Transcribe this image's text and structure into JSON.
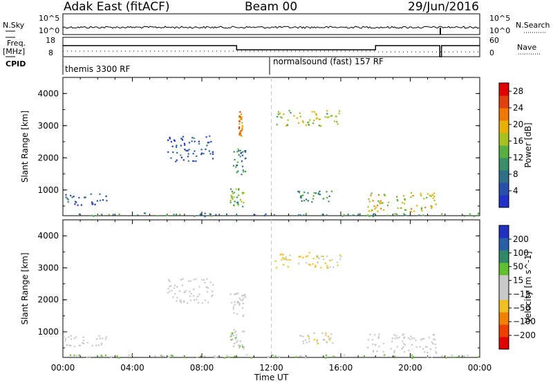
{
  "header": {
    "radar": "Adak East (fitACF)",
    "beam": "Beam 00",
    "date": "29/Jun/2016"
  },
  "strip_labels": {
    "nsky": "N.Sky",
    "nsearch": "N.Search",
    "freq": "Freq.",
    "freq_unit": "[MHz]",
    "nave": "Nave",
    "cpid": "CPID"
  },
  "strip_ticks": {
    "nsky_top": "10^5",
    "nsky_bottom": "10^0",
    "nsearch_top": "10^5",
    "nsearch_bottom": "10^0",
    "freq_top": "18",
    "freq_bottom": "8",
    "nave_top": "60",
    "nave_bottom": "0"
  },
  "cpid_segments": [
    {
      "label": "themis 3300 RF",
      "start_hour": 0
    },
    {
      "label": "normalsound (fast) 157 RF",
      "start_hour": 12
    }
  ],
  "colors": {
    "power": [
      "#2030c8",
      "#2850a8",
      "#2e6e88",
      "#3a8e68",
      "#58b040",
      "#a8c020",
      "#e8b000",
      "#f07800",
      "#e04010",
      "#e00000"
    ],
    "velocity": [
      "#e00000",
      "#f04000",
      "#f08000",
      "#f0c020",
      "#c8c8c8",
      "#c8c8c8",
      "#60c030",
      "#308868",
      "#2860a8",
      "#2030c0"
    ]
  },
  "chart_data": [
    {
      "type": "heatmap",
      "ylabel": "Slant Range [km]",
      "xlabel": "Time UT",
      "x_ticks": [
        "00:00",
        "04:00",
        "08:00",
        "12:00",
        "16:00",
        "20:00",
        "00:00"
      ],
      "y_ticks": [
        "1000",
        "2000",
        "3000",
        "4000"
      ],
      "ylim": [
        200,
        4500
      ],
      "colorbar": {
        "label": "Power [dB]",
        "ticks": [
          "4",
          "8",
          "12",
          "16",
          "20",
          "24",
          "28"
        ],
        "range": [
          0,
          30
        ]
      },
      "scatter_regions": [
        {
          "hours": [
            0.0,
            2.5
          ],
          "range_km": [
            550,
            900
          ],
          "power": 6
        },
        {
          "hours": [
            6.0,
            8.7
          ],
          "range_km": [
            1900,
            2700
          ],
          "power": 5
        },
        {
          "hours": [
            9.6,
            10.5
          ],
          "range_km": [
            1500,
            2300
          ],
          "power": 9
        },
        {
          "hours": [
            9.6,
            10.4
          ],
          "range_km": [
            500,
            1100
          ],
          "power": 14
        },
        {
          "hours": [
            10.1,
            10.3
          ],
          "range_km": [
            2700,
            3500
          ],
          "power": 22
        },
        {
          "hours": [
            12.2,
            16.0
          ],
          "range_km": [
            3000,
            3500
          ],
          "power": 16
        },
        {
          "hours": [
            13.5,
            15.5
          ],
          "range_km": [
            650,
            1000
          ],
          "power": 10
        },
        {
          "hours": [
            17.5,
            21.5
          ],
          "range_km": [
            350,
            950
          ],
          "power": 18
        },
        {
          "hours": [
            0.0,
            24.0
          ],
          "range_km": [
            200,
            300
          ],
          "power": 10
        }
      ]
    },
    {
      "type": "heatmap",
      "ylabel": "Slant Range [km]",
      "xlabel": "Time UT",
      "x_ticks": [
        "00:00",
        "04:00",
        "08:00",
        "12:00",
        "16:00",
        "20:00",
        "00:00"
      ],
      "y_ticks": [
        "1000",
        "2000",
        "3000",
        "4000"
      ],
      "ylim": [
        200,
        4500
      ],
      "colorbar": {
        "label": "Velocity [m s^-1]",
        "ticks": [
          "200",
          "100",
          "50",
          "15",
          "-15",
          "-50",
          "-100",
          "-200"
        ],
        "range": [
          -250,
          250
        ]
      },
      "scatter_regions": [
        {
          "hours": [
            0.0,
            2.5
          ],
          "range_km": [
            550,
            900
          ],
          "velocity": 0
        },
        {
          "hours": [
            6.0,
            8.7
          ],
          "range_km": [
            1900,
            2700
          ],
          "velocity": 0
        },
        {
          "hours": [
            9.6,
            10.5
          ],
          "range_km": [
            1500,
            2300
          ],
          "velocity": 0
        },
        {
          "hours": [
            9.6,
            10.4
          ],
          "range_km": [
            500,
            1100
          ],
          "velocity": 30
        },
        {
          "hours": [
            12.2,
            16.0
          ],
          "range_km": [
            3000,
            3500
          ],
          "velocity": -60
        },
        {
          "hours": [
            13.5,
            15.5
          ],
          "range_km": [
            650,
            1000
          ],
          "velocity": -20
        },
        {
          "hours": [
            17.5,
            21.5
          ],
          "range_km": [
            350,
            950
          ],
          "velocity": 0
        },
        {
          "hours": [
            0.0,
            24.0
          ],
          "range_km": [
            200,
            300
          ],
          "velocity": 40
        }
      ]
    }
  ]
}
